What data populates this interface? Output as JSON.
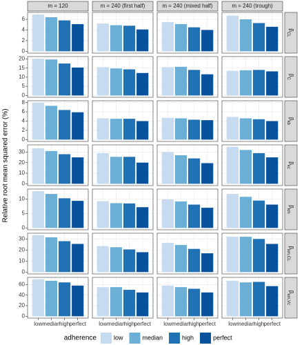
{
  "chart_data": {
    "type": "bar",
    "y_label": "Relative root mean squared error (%)",
    "legend_title": "adherence",
    "categories": [
      "low",
      "median",
      "high",
      "perfect"
    ],
    "colors": [
      "#c6dbef",
      "#6baed6",
      "#2171b5",
      "#08519c"
    ],
    "grid": true,
    "facet_columns": [
      "m = 120",
      "m = 240 (first half)",
      "m = 240 (mixed half)",
      "m = 240 (trough)"
    ],
    "panels": [
      {
        "strip": {
          "symbol": "β",
          "subscript": "CL"
        },
        "ylim": [
          -0.35,
          7.3
        ],
        "yticks": [
          0,
          2,
          4,
          6
        ],
        "values": [
          [
            6.9,
            6.4,
            5.8,
            5.1
          ],
          [
            5.2,
            4.9,
            4.8,
            4.1
          ],
          [
            5.5,
            5.1,
            4.5,
            4.0
          ],
          [
            6.7,
            6.0,
            5.3,
            4.6
          ]
        ]
      },
      {
        "strip": {
          "symbol": "β",
          "subscript": "C"
        },
        "ylim": [
          -1,
          21.3
        ],
        "yticks": [
          0,
          5,
          10,
          15,
          20
        ],
        "values": [
          [
            20.2,
            19.7,
            17.5,
            15.3
          ],
          [
            15.5,
            14.8,
            14.3,
            12.3
          ],
          [
            15.5,
            15.7,
            14.0,
            11.6
          ],
          [
            13.5,
            13.8,
            14.0,
            13.2
          ]
        ]
      },
      {
        "strip": {
          "symbol": "β",
          "subscript": "kb"
        },
        "ylim": [
          -0.4,
          8.4
        ],
        "yticks": [
          0,
          2,
          4,
          6,
          8
        ],
        "values": [
          [
            8.0,
            7.3,
            6.4,
            5.9
          ],
          [
            4.6,
            4.5,
            4.5,
            4.0
          ],
          [
            4.7,
            4.6,
            4.3,
            4.2
          ],
          [
            4.9,
            4.6,
            4.4,
            4.0
          ]
        ]
      },
      {
        "strip": {
          "symbol": "β",
          "subscript": "kc"
        },
        "ylim": [
          -1.75,
          36.8
        ],
        "yticks": [
          0,
          10,
          20,
          30
        ],
        "values": [
          [
            33.5,
            31,
            28,
            25
          ],
          [
            29,
            25.5,
            25.5,
            20
          ],
          [
            30,
            27,
            24,
            19.5
          ],
          [
            35,
            32,
            29,
            25
          ]
        ]
      },
      {
        "strip": {
          "symbol": "β",
          "subscript": "km"
        },
        "ylim": [
          -0.65,
          13.5
        ],
        "yticks": [
          0,
          5,
          10
        ],
        "values": [
          [
            12.8,
            11.8,
            10.3,
            9.4
          ],
          [
            9.3,
            8.6,
            8.5,
            7.2
          ],
          [
            9.9,
            9.2,
            8.1,
            7.0
          ],
          [
            11.8,
            10.8,
            9.5,
            8.1
          ]
        ]
      },
      {
        "strip": {
          "symbol": "β",
          "subscript": "km,CL"
        },
        "ylim": [
          -1.7,
          35.2
        ],
        "yticks": [
          0,
          10,
          20,
          30
        ],
        "values": [
          [
            33.5,
            31.5,
            28,
            25.5
          ],
          [
            23.5,
            22.5,
            20.5,
            18
          ],
          [
            26.5,
            24.5,
            21,
            17
          ],
          [
            32,
            32,
            30,
            25.5
          ]
        ]
      },
      {
        "strip": {
          "symbol": "β",
          "subscript": "km,Vc"
        },
        "ylim": [
          -3.5,
          73.5
        ],
        "yticks": [
          0,
          20,
          40,
          60
        ],
        "values": [
          [
            70,
            67,
            64,
            58
          ],
          [
            55,
            55,
            50,
            45
          ],
          [
            58,
            55,
            52,
            45
          ],
          [
            67,
            64,
            65,
            57
          ]
        ]
      }
    ]
  }
}
